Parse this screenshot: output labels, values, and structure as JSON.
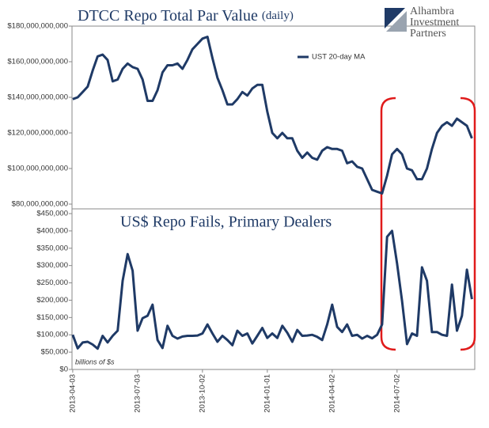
{
  "logo": [
    "Alhambra",
    "Investment",
    "Partners"
  ],
  "chart_data": [
    {
      "type": "line",
      "title": "DTCC Repo Total Par Value",
      "title_note": "(daily)",
      "x": [
        "2013-04-03",
        "2013-04-10",
        "2013-04-17",
        "2013-04-24",
        "2013-05-01",
        "2013-05-08",
        "2013-05-15",
        "2013-05-22",
        "2013-05-29",
        "2013-06-05",
        "2013-06-12",
        "2013-06-19",
        "2013-06-26",
        "2013-07-03",
        "2013-07-10",
        "2013-07-17",
        "2013-07-24",
        "2013-07-31",
        "2013-08-07",
        "2013-08-14",
        "2013-08-21",
        "2013-08-28",
        "2013-09-04",
        "2013-09-11",
        "2013-09-18",
        "2013-09-25",
        "2013-10-02",
        "2013-10-09",
        "2013-10-16",
        "2013-10-23",
        "2013-10-30",
        "2013-11-06",
        "2013-11-13",
        "2013-11-20",
        "2013-11-27",
        "2013-12-04",
        "2013-12-11",
        "2013-12-18",
        "2013-12-25",
        "2014-01-01",
        "2014-01-08",
        "2014-01-15",
        "2014-01-22",
        "2014-01-29",
        "2014-02-05",
        "2014-02-12",
        "2014-02-19",
        "2014-02-26",
        "2014-03-05",
        "2014-03-12",
        "2014-03-19",
        "2014-03-26",
        "2014-04-02",
        "2014-04-09",
        "2014-04-16",
        "2014-04-23",
        "2014-04-30",
        "2014-05-07",
        "2014-05-14",
        "2014-05-21",
        "2014-05-28",
        "2014-06-04",
        "2014-06-11",
        "2014-06-18",
        "2014-06-25",
        "2014-07-02",
        "2014-07-09",
        "2014-07-16",
        "2014-07-23",
        "2014-07-30",
        "2014-08-06",
        "2014-08-13",
        "2014-08-20",
        "2014-08-27",
        "2014-09-03",
        "2014-09-10",
        "2014-09-17",
        "2014-09-24",
        "2014-10-01",
        "2014-10-08",
        "2014-10-15"
      ],
      "series": [
        {
          "name": "UST 20-day MA",
          "color": "#1f3a66",
          "values": [
            139000000000.0,
            140000000000.0,
            143000000000.0,
            146000000000.0,
            155000000000.0,
            163000000000.0,
            164000000000.0,
            161000000000.0,
            149000000000.0,
            150000000000.0,
            156000000000.0,
            159000000000.0,
            157000000000.0,
            156000000000.0,
            150000000000.0,
            138000000000.0,
            138000000000.0,
            144000000000.0,
            154000000000.0,
            158000000000.0,
            158000000000.0,
            159000000000.0,
            156000000000.0,
            161000000000.0,
            167000000000.0,
            170000000000.0,
            173000000000.0,
            174000000000.0,
            162000000000.0,
            151000000000.0,
            144000000000.0,
            136000000000.0,
            136000000000.0,
            139000000000.0,
            143000000000.0,
            141000000000.0,
            145000000000.0,
            147000000000.0,
            147000000000.0,
            132000000000.0,
            120000000000.0,
            117000000000.0,
            120000000000.0,
            117000000000.0,
            117000000000.0,
            110000000000.0,
            106000000000.0,
            109000000000.0,
            106000000000.0,
            105000000000.0,
            110000000000.0,
            112000000000.0,
            111000000000.0,
            111000000000.0,
            110000000000.0,
            103000000000.0,
            104000000000.0,
            101000000000.0,
            100000000000.0,
            94000000000.0,
            88000000000.0,
            87000000000.0,
            86000000000.0,
            96000000000.0,
            108000000000.0,
            111000000000.0,
            108000000000.0,
            100000000000.0,
            99000000000.0,
            94000000000.0,
            94000000000.0,
            100000000000.0,
            111000000000.0,
            120000000000.0,
            124000000000.0,
            126000000000.0,
            124000000000.0,
            128000000000.0,
            126000000000.0,
            124000000000.0,
            117000000000.0
          ]
        }
      ],
      "xlim": [
        "2013-04-02",
        "2014-10-19"
      ],
      "ylim": [
        80000000000.0,
        180000000000.0
      ],
      "yticks": [
        {
          "value": 80000000000.0,
          "label": "$80,000,000,000"
        },
        {
          "value": 100000000000.0,
          "label": "$100,000,000,000"
        },
        {
          "value": 120000000000.0,
          "label": "$120,000,000,000"
        },
        {
          "value": 140000000000.0,
          "label": "$140,000,000,000"
        },
        {
          "value": 160000000000.0,
          "label": "$160,000,000,000"
        },
        {
          "value": 180000000000.0,
          "label": "$180,000,000,000"
        }
      ],
      "legend": "upper center"
    },
    {
      "type": "line",
      "title": "US$ Repo Fails, Primary Dealers",
      "annotation": "billions of $s",
      "x": [
        "2013-04-03",
        "2013-04-10",
        "2013-04-17",
        "2013-04-24",
        "2013-05-01",
        "2013-05-08",
        "2013-05-15",
        "2013-05-22",
        "2013-05-29",
        "2013-06-05",
        "2013-06-12",
        "2013-06-19",
        "2013-06-26",
        "2013-07-03",
        "2013-07-10",
        "2013-07-17",
        "2013-07-24",
        "2013-07-31",
        "2013-08-07",
        "2013-08-14",
        "2013-08-21",
        "2013-08-28",
        "2013-09-04",
        "2013-09-11",
        "2013-09-18",
        "2013-09-25",
        "2013-10-02",
        "2013-10-09",
        "2013-10-16",
        "2013-10-23",
        "2013-10-30",
        "2013-11-06",
        "2013-11-13",
        "2013-11-20",
        "2013-11-27",
        "2013-12-04",
        "2013-12-11",
        "2013-12-18",
        "2013-12-25",
        "2014-01-01",
        "2014-01-08",
        "2014-01-15",
        "2014-01-22",
        "2014-01-29",
        "2014-02-05",
        "2014-02-12",
        "2014-02-19",
        "2014-02-26",
        "2014-03-05",
        "2014-03-12",
        "2014-03-19",
        "2014-03-26",
        "2014-04-02",
        "2014-04-09",
        "2014-04-16",
        "2014-04-23",
        "2014-04-30",
        "2014-05-07",
        "2014-05-14",
        "2014-05-21",
        "2014-05-28",
        "2014-06-04",
        "2014-06-11",
        "2014-06-18",
        "2014-06-25",
        "2014-07-02",
        "2014-07-09",
        "2014-07-16",
        "2014-07-23",
        "2014-07-30",
        "2014-08-06",
        "2014-08-13",
        "2014-08-20",
        "2014-08-27",
        "2014-09-03",
        "2014-09-10",
        "2014-09-17",
        "2014-09-24",
        "2014-10-01",
        "2014-10-08",
        "2014-10-15"
      ],
      "series": [
        {
          "color": "#1f3a66",
          "values": [
            100000.0,
            61000.0,
            78000.0,
            80000.0,
            72000.0,
            60000.0,
            97000.0,
            78000.0,
            97000.0,
            112000.0,
            256000.0,
            333000.0,
            285000.0,
            112000.0,
            148000.0,
            155000.0,
            187000.0,
            85000.0,
            62000.0,
            126000.0,
            97000.0,
            89000.0,
            95000.0,
            97000.0,
            97000.0,
            98000.0,
            104000.0,
            130000.0,
            104000.0,
            80000.0,
            97000.0,
            85000.0,
            70000.0,
            112000.0,
            97000.0,
            104000.0,
            75000.0,
            97000.0,
            120000.0,
            91000.0,
            104000.0,
            91000.0,
            126000.0,
            106000.0,
            80000.0,
            114000.0,
            97000.0,
            98000.0,
            100000.0,
            94000.0,
            85000.0,
            130000.0,
            187000.0,
            123000.0,
            108000.0,
            130000.0,
            97000.0,
            100000.0,
            89000.0,
            97000.0,
            90000.0,
            100000.0,
            130000.0,
            383000.0,
            400000.0,
            306000.0,
            198000.0,
            73000.0,
            104000.0,
            97000.0,
            295000.0,
            256000.0,
            108000.0,
            108000.0,
            100000.0,
            97000.0,
            245000.0,
            112000.0,
            155000.0,
            288000.0,
            203000.0
          ]
        }
      ],
      "xlim": [
        "2013-04-02",
        "2014-10-19"
      ],
      "xticks": [
        "2013-04-03",
        "2013-07-03",
        "2013-10-02",
        "2014-01-01",
        "2014-04-02",
        "2014-07-02"
      ],
      "ylim": [
        0,
        450000
      ],
      "yticks": [
        {
          "value": 0,
          "label": "$0"
        },
        {
          "value": 50000,
          "label": "$50,000"
        },
        {
          "value": 100000,
          "label": "$100,000"
        },
        {
          "value": 150000,
          "label": "$150,000"
        },
        {
          "value": 200000,
          "label": "$200,000"
        },
        {
          "value": 250000,
          "label": "$250,000"
        },
        {
          "value": 300000,
          "label": "$300,000"
        },
        {
          "value": 350000,
          "label": "$350,000"
        },
        {
          "value": 400000,
          "label": "$400,000"
        },
        {
          "value": 450000,
          "label": "$450,000"
        }
      ]
    }
  ]
}
